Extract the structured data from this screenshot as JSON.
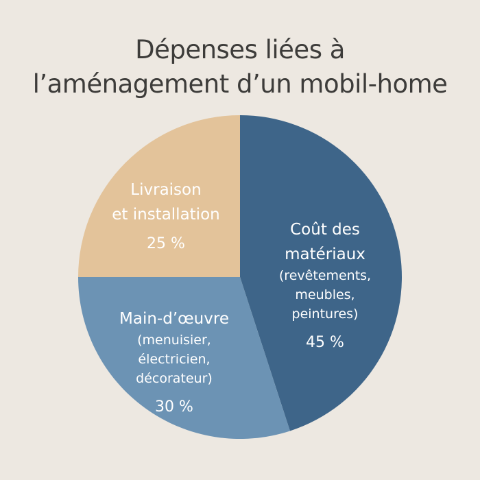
{
  "chart_data": {
    "type": "pie",
    "title_line1": "Dépenses liées à",
    "title_line2": "l’aménagement d’un mobil-home",
    "slices": [
      {
        "name": "Coût des matériaux",
        "label_lines": [
          "Coût des",
          "matériaux"
        ],
        "detail_lines": [
          "(revêtements,",
          "meubles,",
          "peintures)"
        ],
        "value": 45,
        "value_label": "45 %",
        "color": "#3e6589",
        "text_color": "#ffffff"
      },
      {
        "name": "Main-d’œuvre",
        "label_lines": [
          "Main-d’œuvre"
        ],
        "detail_lines": [
          "(menuisier,",
          "électricien,",
          "décorateur)"
        ],
        "value": 30,
        "value_label": "30 %",
        "color": "#6c93b4",
        "text_color": "#ffffff"
      },
      {
        "name": "Livraison et installation",
        "label_lines": [
          "Livraison",
          "et installation"
        ],
        "detail_lines": [],
        "value": 25,
        "value_label": "25 %",
        "color": "#e3c39a",
        "text_color": "#ffffff"
      }
    ],
    "start_angle_deg": 0,
    "direction": "clockwise"
  }
}
